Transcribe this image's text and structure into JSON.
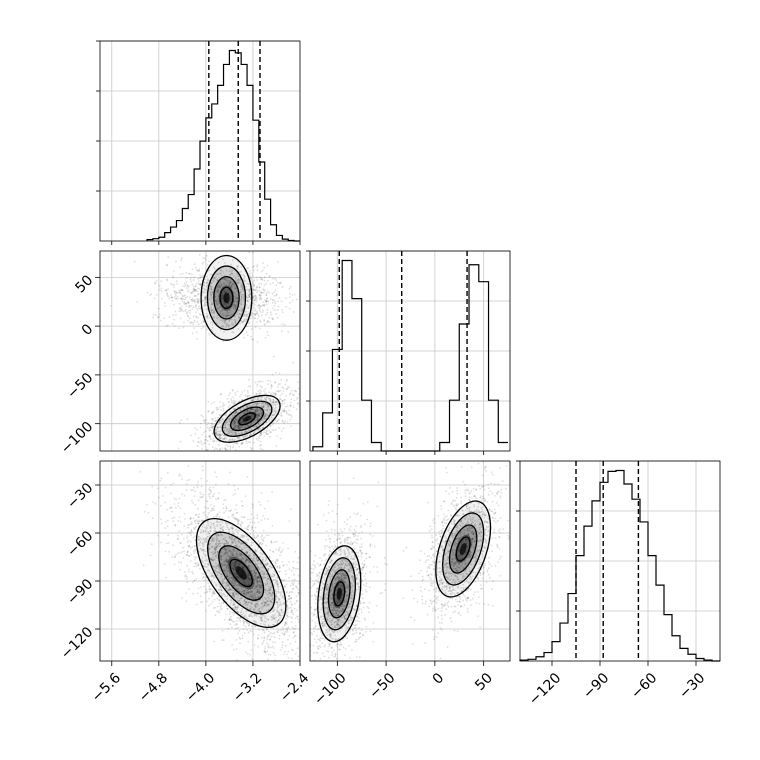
{
  "chart_data": {
    "type": "corner",
    "title": "",
    "parameters": [
      {
        "label": "",
        "range": [
          -5.8,
          -2.4
        ],
        "ticks": [
          -5.6,
          -4.8,
          -4.0,
          -3.2,
          -2.4
        ],
        "tick_labels": [
          "−5.6",
          "−4.8",
          "−4.0",
          "−3.2",
          "−2.4"
        ]
      },
      {
        "label": "",
        "range": [
          -128,
          77
        ],
        "ticks": [
          -100,
          -50,
          0,
          50
        ],
        "tick_labels": [
          "−100",
          "−50",
          "0",
          "50"
        ]
      },
      {
        "label": "",
        "range": [
          -140,
          -15
        ],
        "ticks": [
          -120,
          -90,
          -60,
          -30
        ],
        "tick_labels": [
          "−120",
          "−90",
          "−60",
          "−30"
        ]
      }
    ],
    "diagonal": [
      {
        "param": 0,
        "bin_edges": [
          -5.0,
          -4.9,
          -4.8,
          -4.7,
          -4.6,
          -4.5,
          -4.4,
          -4.3,
          -4.2,
          -4.1,
          -4.0,
          -3.9,
          -3.8,
          -3.7,
          -3.6,
          -3.5,
          -3.4,
          -3.3,
          -3.2,
          -3.1,
          -3.0,
          -2.9,
          -2.8,
          -2.7,
          -2.6,
          -2.5,
          -2.4
        ],
        "counts": [
          0.3,
          0.5,
          0.8,
          1.8,
          3.0,
          4.4,
          7.0,
          10.0,
          15.5,
          21.5,
          26.5,
          29.5,
          33.5,
          38.0,
          41.0,
          40.5,
          38.0,
          33.5,
          26.0,
          17.0,
          9.0,
          3.5,
          1.2,
          0.4,
          0.1,
          0.0
        ],
        "quantiles": [
          -3.95,
          -3.45,
          -3.08
        ]
      },
      {
        "param": 1,
        "bin_edges": [
          -125,
          -115,
          -105,
          -95,
          -85,
          -75,
          -65,
          -55,
          -45,
          -35,
          -25,
          -15,
          -5,
          5,
          15,
          25,
          35,
          45,
          55,
          65,
          75
        ],
        "counts": [
          0.5,
          4.5,
          12.0,
          22.5,
          18.0,
          6.0,
          1.0,
          0.0,
          0.0,
          0.0,
          0.0,
          0.0,
          0.0,
          1.0,
          6.0,
          15.0,
          22.0,
          20.0,
          6.0,
          1.0
        ],
        "quantiles": [
          -98,
          -34,
          33
        ]
      },
      {
        "param": 2,
        "bin_edges": [
          -140,
          -135,
          -130,
          -125,
          -120,
          -115,
          -110,
          -105,
          -100,
          -95,
          -90,
          -85,
          -80,
          -75,
          -70,
          -65,
          -60,
          -55,
          -50,
          -45,
          -40,
          -35,
          -30,
          -25,
          -20,
          -15
        ],
        "counts": [
          0.1,
          0.2,
          0.5,
          1.0,
          2.3,
          4.5,
          8.0,
          12.5,
          16.0,
          19.0,
          21.2,
          22.5,
          22.6,
          21.0,
          19.2,
          16.5,
          12.5,
          9.0,
          5.5,
          3.0,
          1.5,
          0.8,
          0.3,
          0.1,
          0.0
        ],
        "quantiles": [
          -105,
          -88,
          -66
        ]
      }
    ],
    "joint": [
      {
        "x_param": 0,
        "y_param": 1,
        "modes": [
          {
            "center": [
              -3.65,
              29
            ],
            "sd": [
              0.36,
              13
            ],
            "rho": 0.0,
            "weight": 0.5
          },
          {
            "center": [
              -3.3,
              -95
            ],
            "sd": [
              0.28,
              12
            ],
            "rho": 0.55,
            "weight": 0.5
          }
        ]
      },
      {
        "x_param": 0,
        "y_param": 2,
        "modes": [
          {
            "center": [
              -3.4,
              -85
            ],
            "sd": [
              0.38,
              17
            ],
            "rho": -0.6,
            "weight": 1.0
          }
        ]
      },
      {
        "x_param": 1,
        "y_param": 2,
        "modes": [
          {
            "center": [
              -98,
              -98
            ],
            "sd": [
              11,
              15
            ],
            "rho": 0.25,
            "weight": 0.5
          },
          {
            "center": [
              29,
              -70
            ],
            "sd": [
              14,
              15
            ],
            "rho": 0.45,
            "weight": 0.5
          }
        ]
      }
    ],
    "contour_levels_sigma": [
      0.5,
      1.0,
      1.5,
      2.0
    ],
    "grid": true,
    "legend": false
  }
}
